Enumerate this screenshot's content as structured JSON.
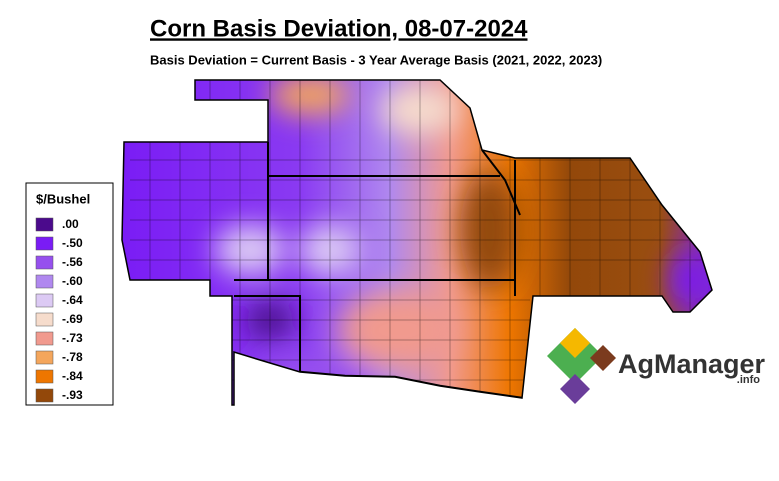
{
  "header": {
    "title": "Corn Basis Deviation, 08-07-2024",
    "subtitle": "Basis Deviation = Current Basis - 3 Year Average Basis (2021, 2022, 2023)"
  },
  "legend": {
    "title": "$/Bushel",
    "items": [
      {
        "label": ".00",
        "color": "#4b0a8c"
      },
      {
        "label": "-.50",
        "color": "#7a1cf5"
      },
      {
        "label": "-.56",
        "color": "#9650ee"
      },
      {
        "label": "-.60",
        "color": "#b088ef"
      },
      {
        "label": "-.64",
        "color": "#dccaf4"
      },
      {
        "label": "-.69",
        "color": "#f6dccc"
      },
      {
        "label": "-.73",
        "color": "#f19a8e"
      },
      {
        "label": "-.78",
        "color": "#f4a65c"
      },
      {
        "label": "-.84",
        "color": "#ee7600"
      },
      {
        "label": "-.93",
        "color": "#93480a"
      }
    ]
  },
  "logo": {
    "name": "AgManager",
    "suffix": ".info"
  }
}
